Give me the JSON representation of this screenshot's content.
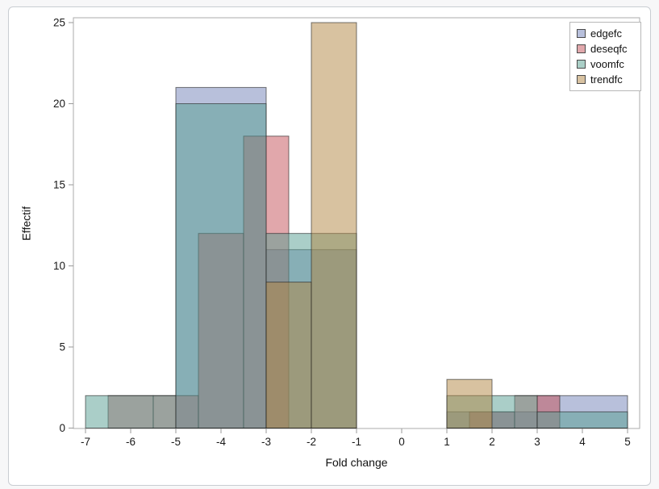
{
  "page": {
    "background": "#f7f7f8",
    "card_background": "#ffffff",
    "card_border": "#c9cdd2"
  },
  "chart_data": {
    "type": "bar",
    "subtype": "overlaid-histograms",
    "title": "",
    "xlabel": "Fold change",
    "ylabel": "Effectif",
    "x_ticks": [
      -7,
      -6,
      -5,
      -4,
      -3,
      -2,
      -1,
      0,
      1,
      2,
      3,
      4,
      5
    ],
    "y_ticks": [
      0,
      5,
      10,
      15,
      20,
      25
    ],
    "xlim": [
      -7.27,
      5.27
    ],
    "ylim": [
      0,
      25.35
    ],
    "grid": false,
    "legend_position": "top-right-inside",
    "frame_color": "#ababab",
    "tick_color": "#9a9a9a",
    "tick_label_color": "#1a1a1a",
    "bar_border_color": "rgba(30,30,30,0.6)",
    "fill_opacity": 0.5,
    "series": [
      {
        "name": "edgefc",
        "color": "#7181b8",
        "legend_color": "#b8c0dc",
        "bins": [
          {
            "from": -5,
            "to": -3,
            "count": 21
          },
          {
            "from": -3,
            "to": -1,
            "count": 11
          },
          {
            "from": 1,
            "to": 3,
            "count": 1
          },
          {
            "from": 3,
            "to": 5,
            "count": 2
          }
        ]
      },
      {
        "name": "deseqfc",
        "color": "#c45058",
        "legend_color": "#e1a8ac",
        "bins": [
          {
            "from": -6.5,
            "to": -5.5,
            "count": 2
          },
          {
            "from": -5.5,
            "to": -4.5,
            "count": 2
          },
          {
            "from": -4.5,
            "to": -3.5,
            "count": 12
          },
          {
            "from": -3.5,
            "to": -2.5,
            "count": 18
          },
          {
            "from": 1.5,
            "to": 2.5,
            "count": 1
          },
          {
            "from": 2.5,
            "to": 3.5,
            "count": 2
          }
        ]
      },
      {
        "name": "voomfc",
        "color": "#569e92",
        "legend_color": "#aacfc7",
        "bins": [
          {
            "from": -7,
            "to": -5,
            "count": 2
          },
          {
            "from": -5,
            "to": -3,
            "count": 20
          },
          {
            "from": -3,
            "to": -1,
            "count": 12
          },
          {
            "from": 1,
            "to": 3,
            "count": 2
          },
          {
            "from": 3,
            "to": 5,
            "count": 1
          }
        ]
      },
      {
        "name": "trendfc",
        "color": "#b28642",
        "legend_color": "#d8c2a1",
        "bins": [
          {
            "from": -3,
            "to": -2,
            "count": 9
          },
          {
            "from": -2,
            "to": -1,
            "count": 25
          },
          {
            "from": 1,
            "to": 2,
            "count": 3
          }
        ]
      }
    ]
  }
}
